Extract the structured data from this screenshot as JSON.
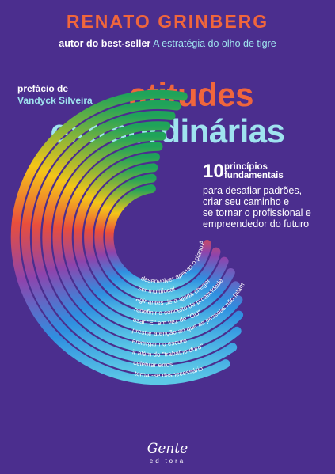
{
  "cover": {
    "author": "RENATO GRINBERG",
    "tagline_lead": "autor do best-seller",
    "tagline_book": "A estratégia do olho de tigre",
    "preface_label": "prefácio de",
    "preface_name": "Vandyck Silveira",
    "title_line1": "atitudes",
    "title_line2": "extraordinárias",
    "number": "10",
    "number_label_1": "princípios",
    "number_label_2": "fundamentais",
    "subtitle_1": "para desafiar padrões,",
    "subtitle_2": "criar seu caminho e",
    "subtitle_3": "se tornar o profissional e",
    "subtitle_4": "empreendedor do futuro",
    "publisher": "Gente",
    "publisher_sub": "editora"
  },
  "principles": [
    "desenvolver apenas o plano A",
    "ser multifocal",
    "agir antes de a ajuda chegar",
    "redefinir o conceito de proatividade",
    "usar \"E\" em vez de \"OU\"",
    "prestar atenção ao que as pessoas não falam",
    "enxergar no escuro",
    "ir além do \"trabalho duro\"",
    "celebrar erros",
    "tornar-se desnecessário"
  ],
  "colors": {
    "background": "#4b2e8e",
    "accent_orange": "#f0663c",
    "accent_cyan": "#9fe3ef",
    "arc_gradient": [
      "#1fa35a",
      "#9acd32",
      "#f5c518",
      "#f7931e",
      "#e94e3c",
      "#d6307a",
      "#8e44ad",
      "#5b6ee1",
      "#2f8fe0",
      "#5cc8e6"
    ]
  }
}
